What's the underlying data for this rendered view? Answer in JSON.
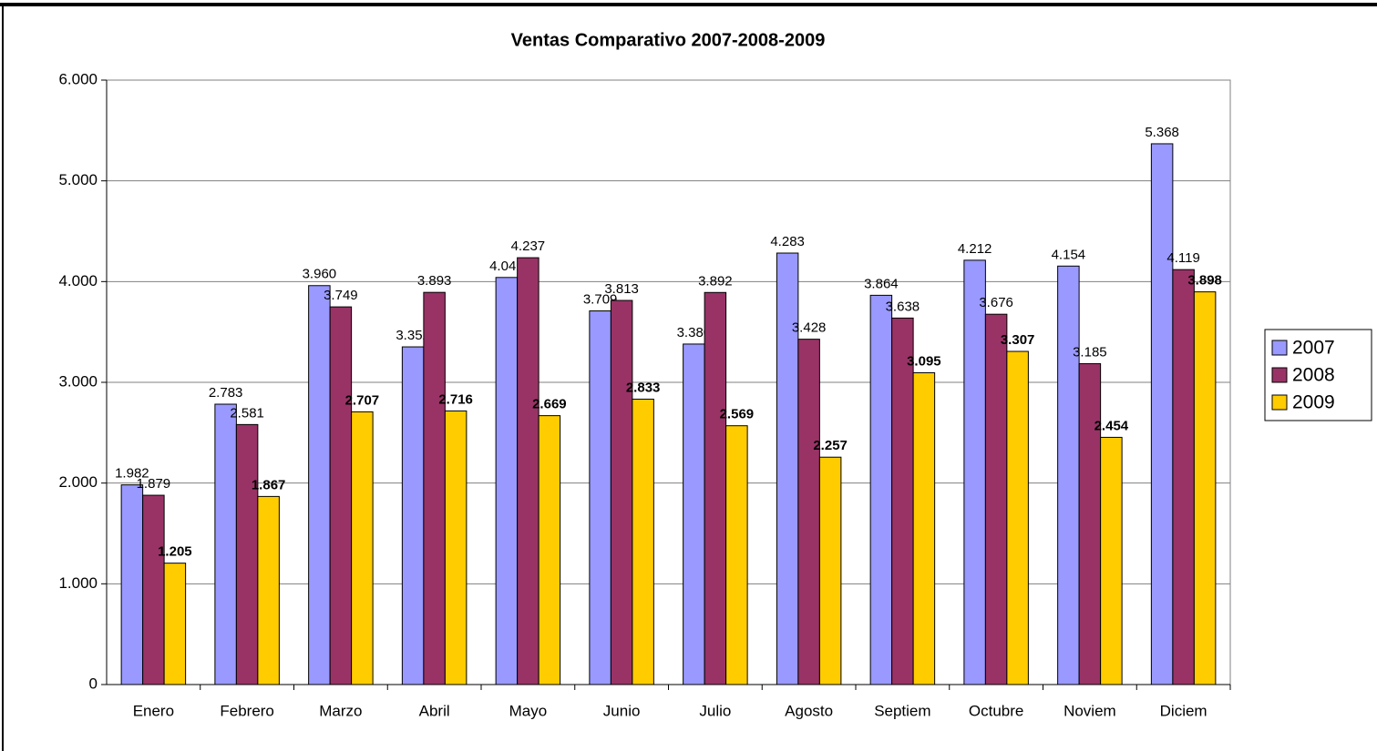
{
  "chart_data": {
    "type": "bar",
    "title": "Ventas Comparativo 2007-2008-2009",
    "categories": [
      "Enero",
      "Febrero",
      "Marzo",
      "Abril",
      "Mayo",
      "Junio",
      "Julio",
      "Agosto",
      "Septiem",
      "Octubre",
      "Noviem",
      "Diciem"
    ],
    "series": [
      {
        "name": "2007",
        "color": "#9999ff",
        "values": [
          1982,
          2783,
          3960,
          3352,
          4041,
          3709,
          3380,
          4283,
          3864,
          4212,
          4154,
          5368
        ],
        "value_labels": [
          "1.982",
          "2.783",
          "3.960",
          "3.352",
          "4.041",
          "3.709",
          "3.380",
          "4.283",
          "3.864",
          "4.212",
          "4.154",
          "5.368"
        ]
      },
      {
        "name": "2008",
        "color": "#993366",
        "values": [
          1879,
          2581,
          3749,
          3893,
          4237,
          3813,
          3892,
          3428,
          3638,
          3676,
          3185,
          4119
        ],
        "value_labels": [
          "1.879",
          "2.581",
          "3.749",
          "3.893",
          "4.237",
          "3.813",
          "3.892",
          "3.428",
          "3.638",
          "3.676",
          "3.185",
          "4.119"
        ]
      },
      {
        "name": "2009",
        "color": "#ffcc00",
        "values": [
          1205,
          1867,
          2707,
          2716,
          2669,
          2833,
          2569,
          2257,
          3095,
          3307,
          2454,
          3898
        ],
        "value_labels": [
          "1.205",
          "1.867",
          "2.707",
          "2.716",
          "2.669",
          "2.833",
          "2.569",
          "2.257",
          "3.095",
          "3.307",
          "2.454",
          "3.898"
        ]
      }
    ],
    "ylim": [
      0,
      6000
    ],
    "yticks": [
      0,
      {
        "value": 1000,
        "label": "1.000"
      },
      {
        "value": 2000,
        "label": "2.000"
      },
      {
        "value": 3000,
        "label": "3.000"
      },
      {
        "value": 4000,
        "label": "4.000"
      },
      {
        "value": 5000,
        "label": "5.000"
      },
      {
        "value": 6000,
        "label": "6.000"
      }
    ],
    "grid": true,
    "legend": "right"
  }
}
